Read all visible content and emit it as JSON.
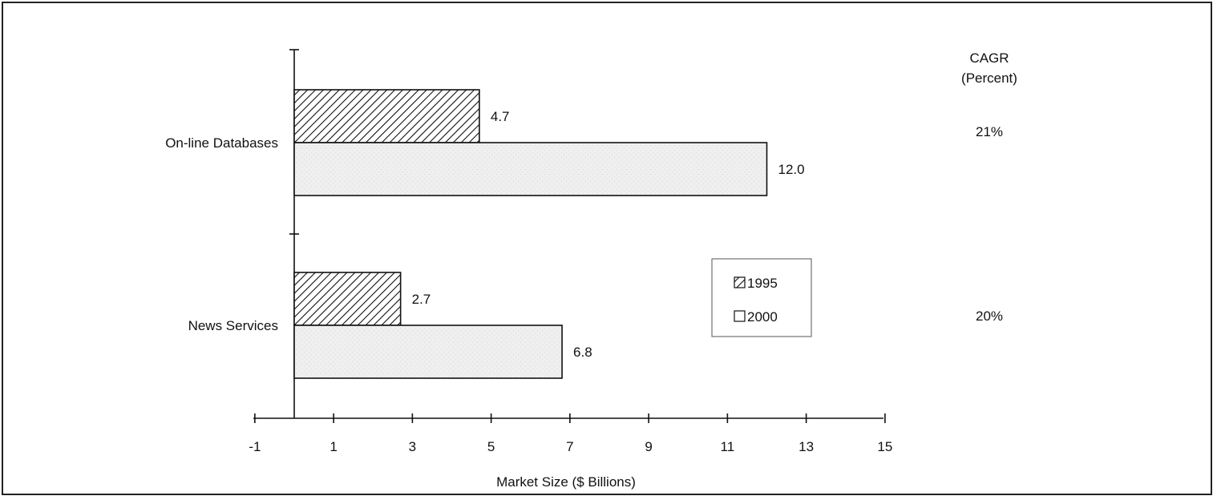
{
  "chart_data": {
    "type": "bar",
    "orientation": "horizontal",
    "categories": [
      "On-line Databases",
      "News Services"
    ],
    "series": [
      {
        "name": "1995",
        "values": [
          4.7,
          2.7
        ],
        "pattern": "diagonal-hatch"
      },
      {
        "name": "2000",
        "values": [
          12.0,
          6.8
        ],
        "pattern": "light-stipple"
      }
    ],
    "data_labels": {
      "1995": [
        "4.7",
        "2.7"
      ],
      "2000": [
        "12.0",
        "6.8"
      ]
    },
    "title": "",
    "xlabel": "Market Size ($ Billions)",
    "ylabel": "",
    "xlim": [
      -1,
      15
    ],
    "x_ticks": [
      -1,
      1,
      3,
      5,
      7,
      9,
      11,
      13,
      15
    ],
    "grid": false,
    "legend_position": "center-right",
    "cagr": {
      "header_line1": "CAGR",
      "header_line2": "(Percent)",
      "values": [
        "21%",
        "20%"
      ]
    }
  },
  "colors": {
    "frame": "#222222",
    "bar_fill_2000": "#efefef",
    "hatch": "#111111"
  }
}
